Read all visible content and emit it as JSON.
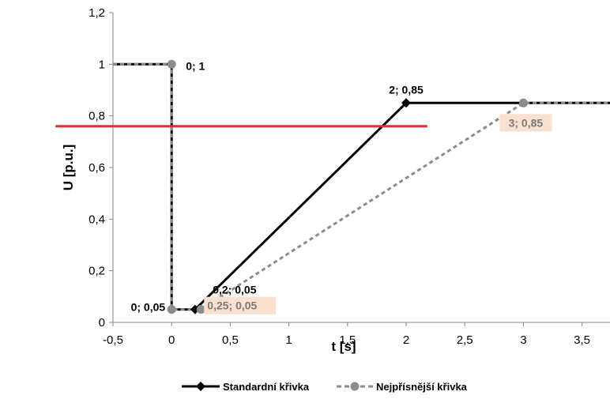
{
  "chart_data": {
    "type": "line",
    "xlabel": "t [s]",
    "ylabel": "U [p.u.]",
    "xlim": [
      -0.5,
      3.75
    ],
    "ylim": [
      0,
      1.2
    ],
    "x_ticks": [
      {
        "value": -0.5,
        "label": "-0,5"
      },
      {
        "value": 0,
        "label": "0"
      },
      {
        "value": 0.5,
        "label": "0,5"
      },
      {
        "value": 1,
        "label": "1"
      },
      {
        "value": 1.5,
        "label": "1,5"
      },
      {
        "value": 2,
        "label": "2"
      },
      {
        "value": 2.5,
        "label": "2,5"
      },
      {
        "value": 3,
        "label": "3"
      },
      {
        "value": 3.5,
        "label": "3,5"
      }
    ],
    "y_ticks": [
      {
        "value": 0,
        "label": "0"
      },
      {
        "value": 0.2,
        "label": "0,2"
      },
      {
        "value": 0.4,
        "label": "0,4"
      },
      {
        "value": 0.6,
        "label": "0,6"
      },
      {
        "value": 0.8,
        "label": "0,8"
      },
      {
        "value": 1,
        "label": "1"
      },
      {
        "value": 1.2,
        "label": "1,2"
      }
    ],
    "grid": false,
    "legend_position": "bottom",
    "series": [
      {
        "name": "Standardní křivka",
        "color": "#000000",
        "style": "solid",
        "marker": "diamond",
        "points": [
          [
            -0.5,
            1
          ],
          [
            0,
            1
          ],
          [
            0,
            0.05
          ],
          [
            0.2,
            0.05
          ],
          [
            2,
            0.85
          ],
          [
            3.75,
            0.85
          ]
        ],
        "marker_points": [
          [
            0.2,
            0.05
          ],
          [
            2,
            0.85
          ]
        ]
      },
      {
        "name": "Nejpřísnější křivka",
        "color": "#8c8c8c",
        "style": "dashed",
        "marker": "circle",
        "points": [
          [
            -0.5,
            1
          ],
          [
            0,
            1
          ],
          [
            0,
            0.05
          ],
          [
            0.25,
            0.05
          ],
          [
            3,
            0.85
          ],
          [
            3.75,
            0.85
          ]
        ],
        "marker_points": [
          [
            0,
            1
          ],
          [
            0,
            0.05
          ],
          [
            0.25,
            0.05
          ],
          [
            3,
            0.85
          ]
        ]
      }
    ],
    "annotations": [
      {
        "text": "0; 1",
        "x": 0,
        "y": 1,
        "highlight": false
      },
      {
        "text": "0; 0,05",
        "x": 0,
        "y": 0.05,
        "highlight": false
      },
      {
        "text": "0,2; 0,05",
        "x": 0.2,
        "y": 0.05,
        "highlight": false
      },
      {
        "text": "0,25; 0,05",
        "x": 0.25,
        "y": 0.05,
        "highlight": true
      },
      {
        "text": "2; 0,85",
        "x": 2,
        "y": 0.85,
        "highlight": false
      },
      {
        "text": "3; 0,85",
        "x": 3,
        "y": 0.85,
        "highlight": true
      }
    ],
    "reference_line": {
      "y": 0.76,
      "x_start": -0.99,
      "x_end": 2.18,
      "color": "#e03030"
    },
    "highlight_fill": "#fae0cf",
    "highlight_text_color": "#7a7a7a"
  }
}
